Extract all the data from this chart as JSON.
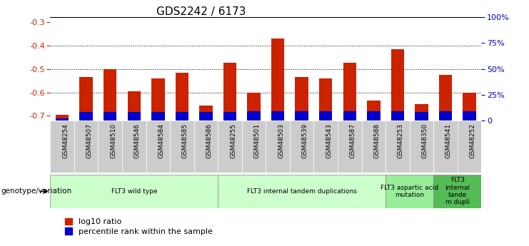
{
  "title": "GDS2242 / 6173",
  "samples": [
    "GSM48254",
    "GSM48507",
    "GSM48510",
    "GSM48546",
    "GSM48584",
    "GSM48585",
    "GSM48586",
    "GSM48255",
    "GSM48501",
    "GSM48503",
    "GSM48539",
    "GSM48543",
    "GSM48587",
    "GSM48588",
    "GSM48253",
    "GSM48350",
    "GSM48541",
    "GSM48252"
  ],
  "log10_ratio": [
    -0.695,
    -0.535,
    -0.5,
    -0.595,
    -0.54,
    -0.515,
    -0.655,
    -0.475,
    -0.6,
    -0.372,
    -0.535,
    -0.54,
    -0.475,
    -0.635,
    -0.415,
    -0.65,
    -0.525,
    -0.6
  ],
  "percentile_rank": [
    2,
    8,
    8,
    8,
    8,
    8,
    8,
    8,
    9,
    9,
    9,
    9,
    9,
    9,
    9,
    8,
    9,
    9
  ],
  "ylim_left": [
    -0.72,
    -0.28
  ],
  "ylim_right": [
    0,
    100
  ],
  "yticks_left": [
    -0.7,
    -0.6,
    -0.5,
    -0.4,
    -0.3
  ],
  "yticks_right": [
    0,
    25,
    50,
    75,
    100
  ],
  "grid_lines": [
    -0.4,
    -0.5,
    -0.6
  ],
  "groups": [
    {
      "label": "FLT3 wild type",
      "start": 0,
      "end": 7,
      "color": "#ccffcc"
    },
    {
      "label": "FLT3 internal tandem duplications",
      "start": 7,
      "end": 14,
      "color": "#ccffcc"
    },
    {
      "label": "FLT3 aspartic acid\nmutation",
      "start": 14,
      "end": 16,
      "color": "#99ee99"
    },
    {
      "label": "FLT3\ninternal\ntande\nm dupli",
      "start": 16,
      "end": 18,
      "color": "#55bb55"
    }
  ],
  "bar_color_red": "#cc2200",
  "bar_color_blue": "#0000cc",
  "right_axis_color": "#0000cc",
  "left_axis_color": "#cc2200",
  "bar_width": 0.55,
  "legend_labels": [
    "log10 ratio",
    "percentile rank within the sample"
  ],
  "legend_colors": [
    "#cc2200",
    "#0000cc"
  ],
  "tick_bg_color": "#cccccc",
  "group_border_color": "#888888"
}
